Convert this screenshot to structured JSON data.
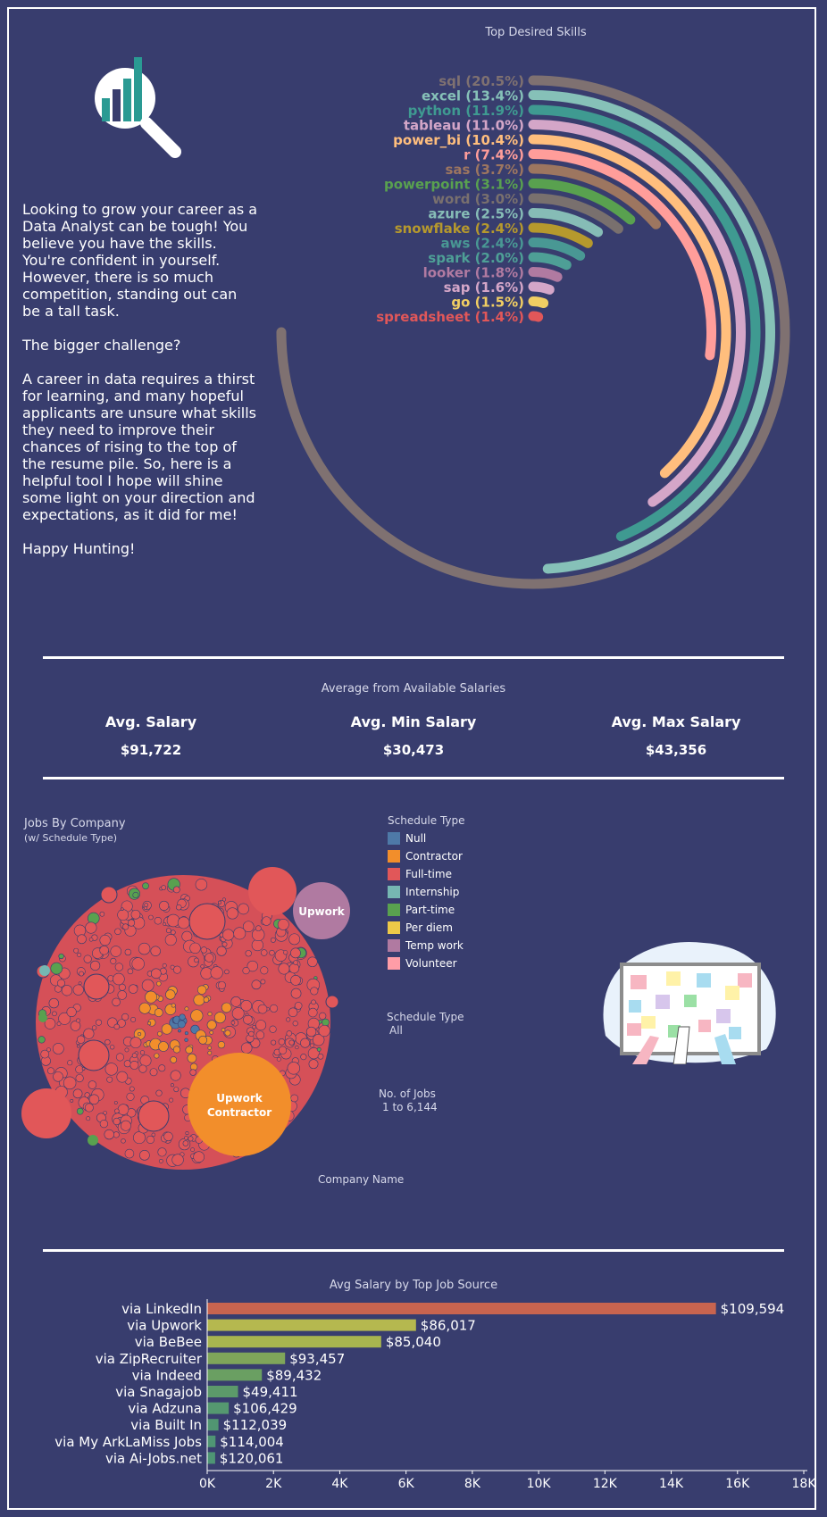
{
  "skills_chart": {
    "title": "Top Desired Skills",
    "chart_data": {
      "type": "radial-bar",
      "title": "Top Desired Skills",
      "categories": [
        "sql",
        "excel",
        "python",
        "tableau",
        "power_bi",
        "r",
        "sas",
        "powerpoint",
        "word",
        "azure",
        "snowflake",
        "aws",
        "spark",
        "looker",
        "sap",
        "go",
        "spreadsheet"
      ],
      "values": [
        20.5,
        13.4,
        11.9,
        11.0,
        10.4,
        7.4,
        3.7,
        3.1,
        3.0,
        2.5,
        2.4,
        2.4,
        2.0,
        1.8,
        1.6,
        1.5,
        1.4
      ],
      "labels": [
        "sql (20.5%)",
        "excel (13.4%)",
        "python (11.9%)",
        "tableau (11.0%)",
        "power_bi (10.4%)",
        "r (7.4%)",
        "sas (3.7%)",
        "powerpoint (3.1%)",
        "word (3.0%)",
        "azure (2.5%)",
        "snowflake (2.4%)",
        "aws (2.4%)",
        "spark (2.0%)",
        "looker (1.8%)",
        "sap (1.6%)",
        "go (1.5%)",
        "spreadsheet (1.4%)"
      ],
      "colors": [
        "#7f7171",
        "#86c1b8",
        "#3f9a91",
        "#d4a6c8",
        "#ffbe7d",
        "#ff9d9a",
        "#9d7660",
        "#59a14f",
        "#79706e",
        "#86bcb6",
        "#b6992d",
        "#499894",
        "#4e9f96",
        "#b07aa1",
        "#d4a6c8",
        "#f1ce63",
        "#e15759"
      ]
    }
  },
  "intro": {
    "p1": "Looking to grow your career as a Data Analyst can be tough! You believe you have the skills. You're confident in yourself. However, there is so much competition, standing out can be a tall task.",
    "p2": "The bigger challenge?",
    "p3": "A career in data requires a thirst for learning, and many hopeful applicants are unsure what skills they need to improve their chances of rising to the top of the resume pile. So, here is a helpful tool I hope will shine some light on your direction and expectations, as it did for me!",
    "p4": "Happy Hunting!"
  },
  "salaries": {
    "title": "Average from Available Salaries",
    "avg_label": "Avg. Salary",
    "avg_value": "$91,722",
    "min_label": "Avg. Min Salary",
    "min_value": "$30,473",
    "max_label": "Avg. Max Salary",
    "max_value": "$43,356"
  },
  "jobs_by_company": {
    "title": "Jobs By Company",
    "subtitle": "(w/ Schedule Type)",
    "bubble_upwork_top": "Upwork",
    "bubble_upwork_contractor_1": "Upwork",
    "bubble_upwork_contractor_2": "Contractor",
    "footer": "Company Name",
    "legend_title": "Schedule Type",
    "legend": [
      {
        "label": "Null",
        "color": "#4e79a7"
      },
      {
        "label": "Contractor",
        "color": "#f28e2b"
      },
      {
        "label": "Full-time",
        "color": "#e15759"
      },
      {
        "label": "Internship",
        "color": "#76b7b2"
      },
      {
        "label": "Part-time",
        "color": "#59a14f"
      },
      {
        "label": "Per diem",
        "color": "#edc948"
      },
      {
        "label": "Temp work",
        "color": "#b07aa1"
      },
      {
        "label": "Volunteer",
        "color": "#ff9da7"
      }
    ],
    "filter_label": "Schedule Type",
    "filter_value": "All",
    "size_label": "No. of Jobs",
    "size_range": "1 to 6,144"
  },
  "job_source_chart": {
    "title": "Avg Salary by Top Job Source",
    "chart_data": {
      "type": "bar",
      "orientation": "horizontal",
      "title": "Avg Salary by Top Job Source",
      "categories": [
        "via LinkedIn",
        "via Upwork",
        "via BeBee",
        "via ZipRecruiter",
        "via Indeed",
        "via Snagajob",
        "via Adzuna",
        "via Built In",
        "via My ArkLaMiss Jobs",
        "via Ai-Jobs.net"
      ],
      "values": [
        15350,
        6300,
        5250,
        2350,
        1650,
        930,
        650,
        340,
        250,
        240
      ],
      "data_labels": [
        "$109,594",
        "$86,017",
        "$85,040",
        "$93,457",
        "$89,432",
        "$49,411",
        "$106,429",
        "$112,039",
        "$114,004",
        "$120,061"
      ],
      "colors": [
        "#c8644f",
        "#b5b84f",
        "#a8b54f",
        "#7fa55a",
        "#6a9f62",
        "#5c9a6a",
        "#559870",
        "#519672",
        "#4f9574",
        "#4e9574"
      ],
      "xlim": [
        0,
        18000
      ],
      "xticks": [
        "0K",
        "2K",
        "4K",
        "6K",
        "8K",
        "10K",
        "12K",
        "14K",
        "16K",
        "18K"
      ]
    }
  }
}
